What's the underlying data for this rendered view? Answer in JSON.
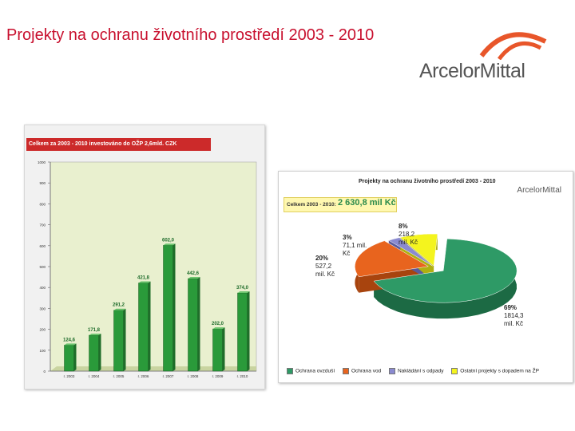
{
  "slide": {
    "title": "Projekty na ochranu životního prostředí 2003 - 2010",
    "logo_text": "ArcelorMittal",
    "logo_color": "#e8562a"
  },
  "bar_chart": {
    "header": "Celkem za 2003 - 2010 investováno do OŽP 2,6mld. CZK",
    "header_color": "#cc2a2a",
    "bar_color": "#2a9a3a"
  },
  "pie_chart": {
    "title": "Projekty na ochranu životního prostředí 2003 - 2010",
    "logo_text": "ArcelorMittal",
    "total_label": "Celkem 2003 - 2010:",
    "total_value": "2 630,8 mil Kč",
    "labels": [
      {
        "pct": "69%",
        "text": "1814,3\nmil. Kč"
      },
      {
        "pct": "20%",
        "text": "527,2\nmil. Kč"
      },
      {
        "pct": "3%",
        "text": "71,1 mil.\nKč"
      },
      {
        "pct": "8%",
        "text": "218,2\nmil. Kč"
      }
    ],
    "legend": [
      {
        "label": "Ochrana ovzduší",
        "color": "#2e9a66"
      },
      {
        "label": "Ochrana vod",
        "color": "#e8641e"
      },
      {
        "label": "Nakládání s odpady",
        "color": "#8a8ad0"
      },
      {
        "label": "Ostatní projekty s dopadem na ŽP",
        "color": "#f4f41e"
      }
    ]
  },
  "chart_data": [
    {
      "type": "bar",
      "title": "Celkem za 2003 - 2010 investováno do OŽP 2,6mld. CZK",
      "categories": [
        "r. 2003",
        "r. 2004",
        "r. 2005",
        "r. 2006",
        "r. 2007",
        "r. 2008",
        "r. 2009",
        "r. 2010"
      ],
      "values": [
        124.6,
        171.8,
        291.2,
        421.8,
        602.0,
        442.6,
        202.0,
        374.0
      ],
      "value_labels": [
        "124,6",
        "171,8",
        "291,2",
        "421,8",
        "602,0",
        "442,6",
        "202,0",
        "374,0"
      ],
      "yticks": [
        "0",
        "100",
        "200",
        "300",
        "400",
        "500",
        "600",
        "700",
        "800",
        "900",
        "1000"
      ],
      "ylim": [
        0,
        1000
      ],
      "grid": false
    },
    {
      "type": "pie",
      "title": "Projekty na ochranu životního prostředí 2003 - 2010",
      "categories": [
        "Ochrana ovzduší",
        "Ochrana vod",
        "Nakládání s odpady",
        "Ostatní projekty s dopadem na ŽP"
      ],
      "values": [
        1814.3,
        527.2,
        71.1,
        218.2
      ],
      "percent": [
        69,
        20,
        3,
        8
      ],
      "legend_position": "bottom"
    }
  ]
}
